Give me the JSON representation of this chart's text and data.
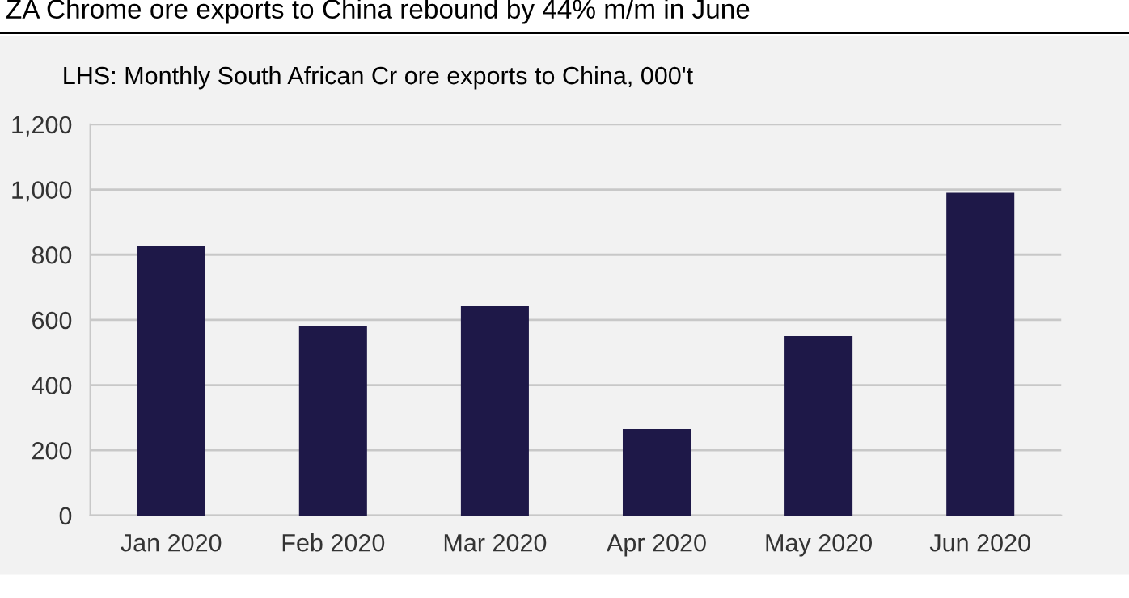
{
  "chart_data": {
    "type": "bar",
    "title": "ZA Chrome ore exports to China rebound by 44% m/m in June",
    "subtitle": "LHS: Monthly South African Cr ore exports to China, 000't",
    "categories": [
      "Jan 2020",
      "Feb 2020",
      "Mar 2020",
      "Apr 2020",
      "May 2020",
      "Jun 2020"
    ],
    "values": [
      828,
      580,
      642,
      265,
      550,
      990
    ],
    "color": "#1e1848",
    "ylim": [
      0,
      1200
    ],
    "yticks": [
      {
        "value": 0,
        "label": "0"
      },
      {
        "value": 200,
        "label": "200"
      },
      {
        "value": 400,
        "label": "400"
      },
      {
        "value": 600,
        "label": "600"
      },
      {
        "value": 800,
        "label": "800"
      },
      {
        "value": 1000,
        "label": "1,000"
      },
      {
        "value": 1200,
        "label": "1,200"
      }
    ],
    "grid": "y"
  }
}
